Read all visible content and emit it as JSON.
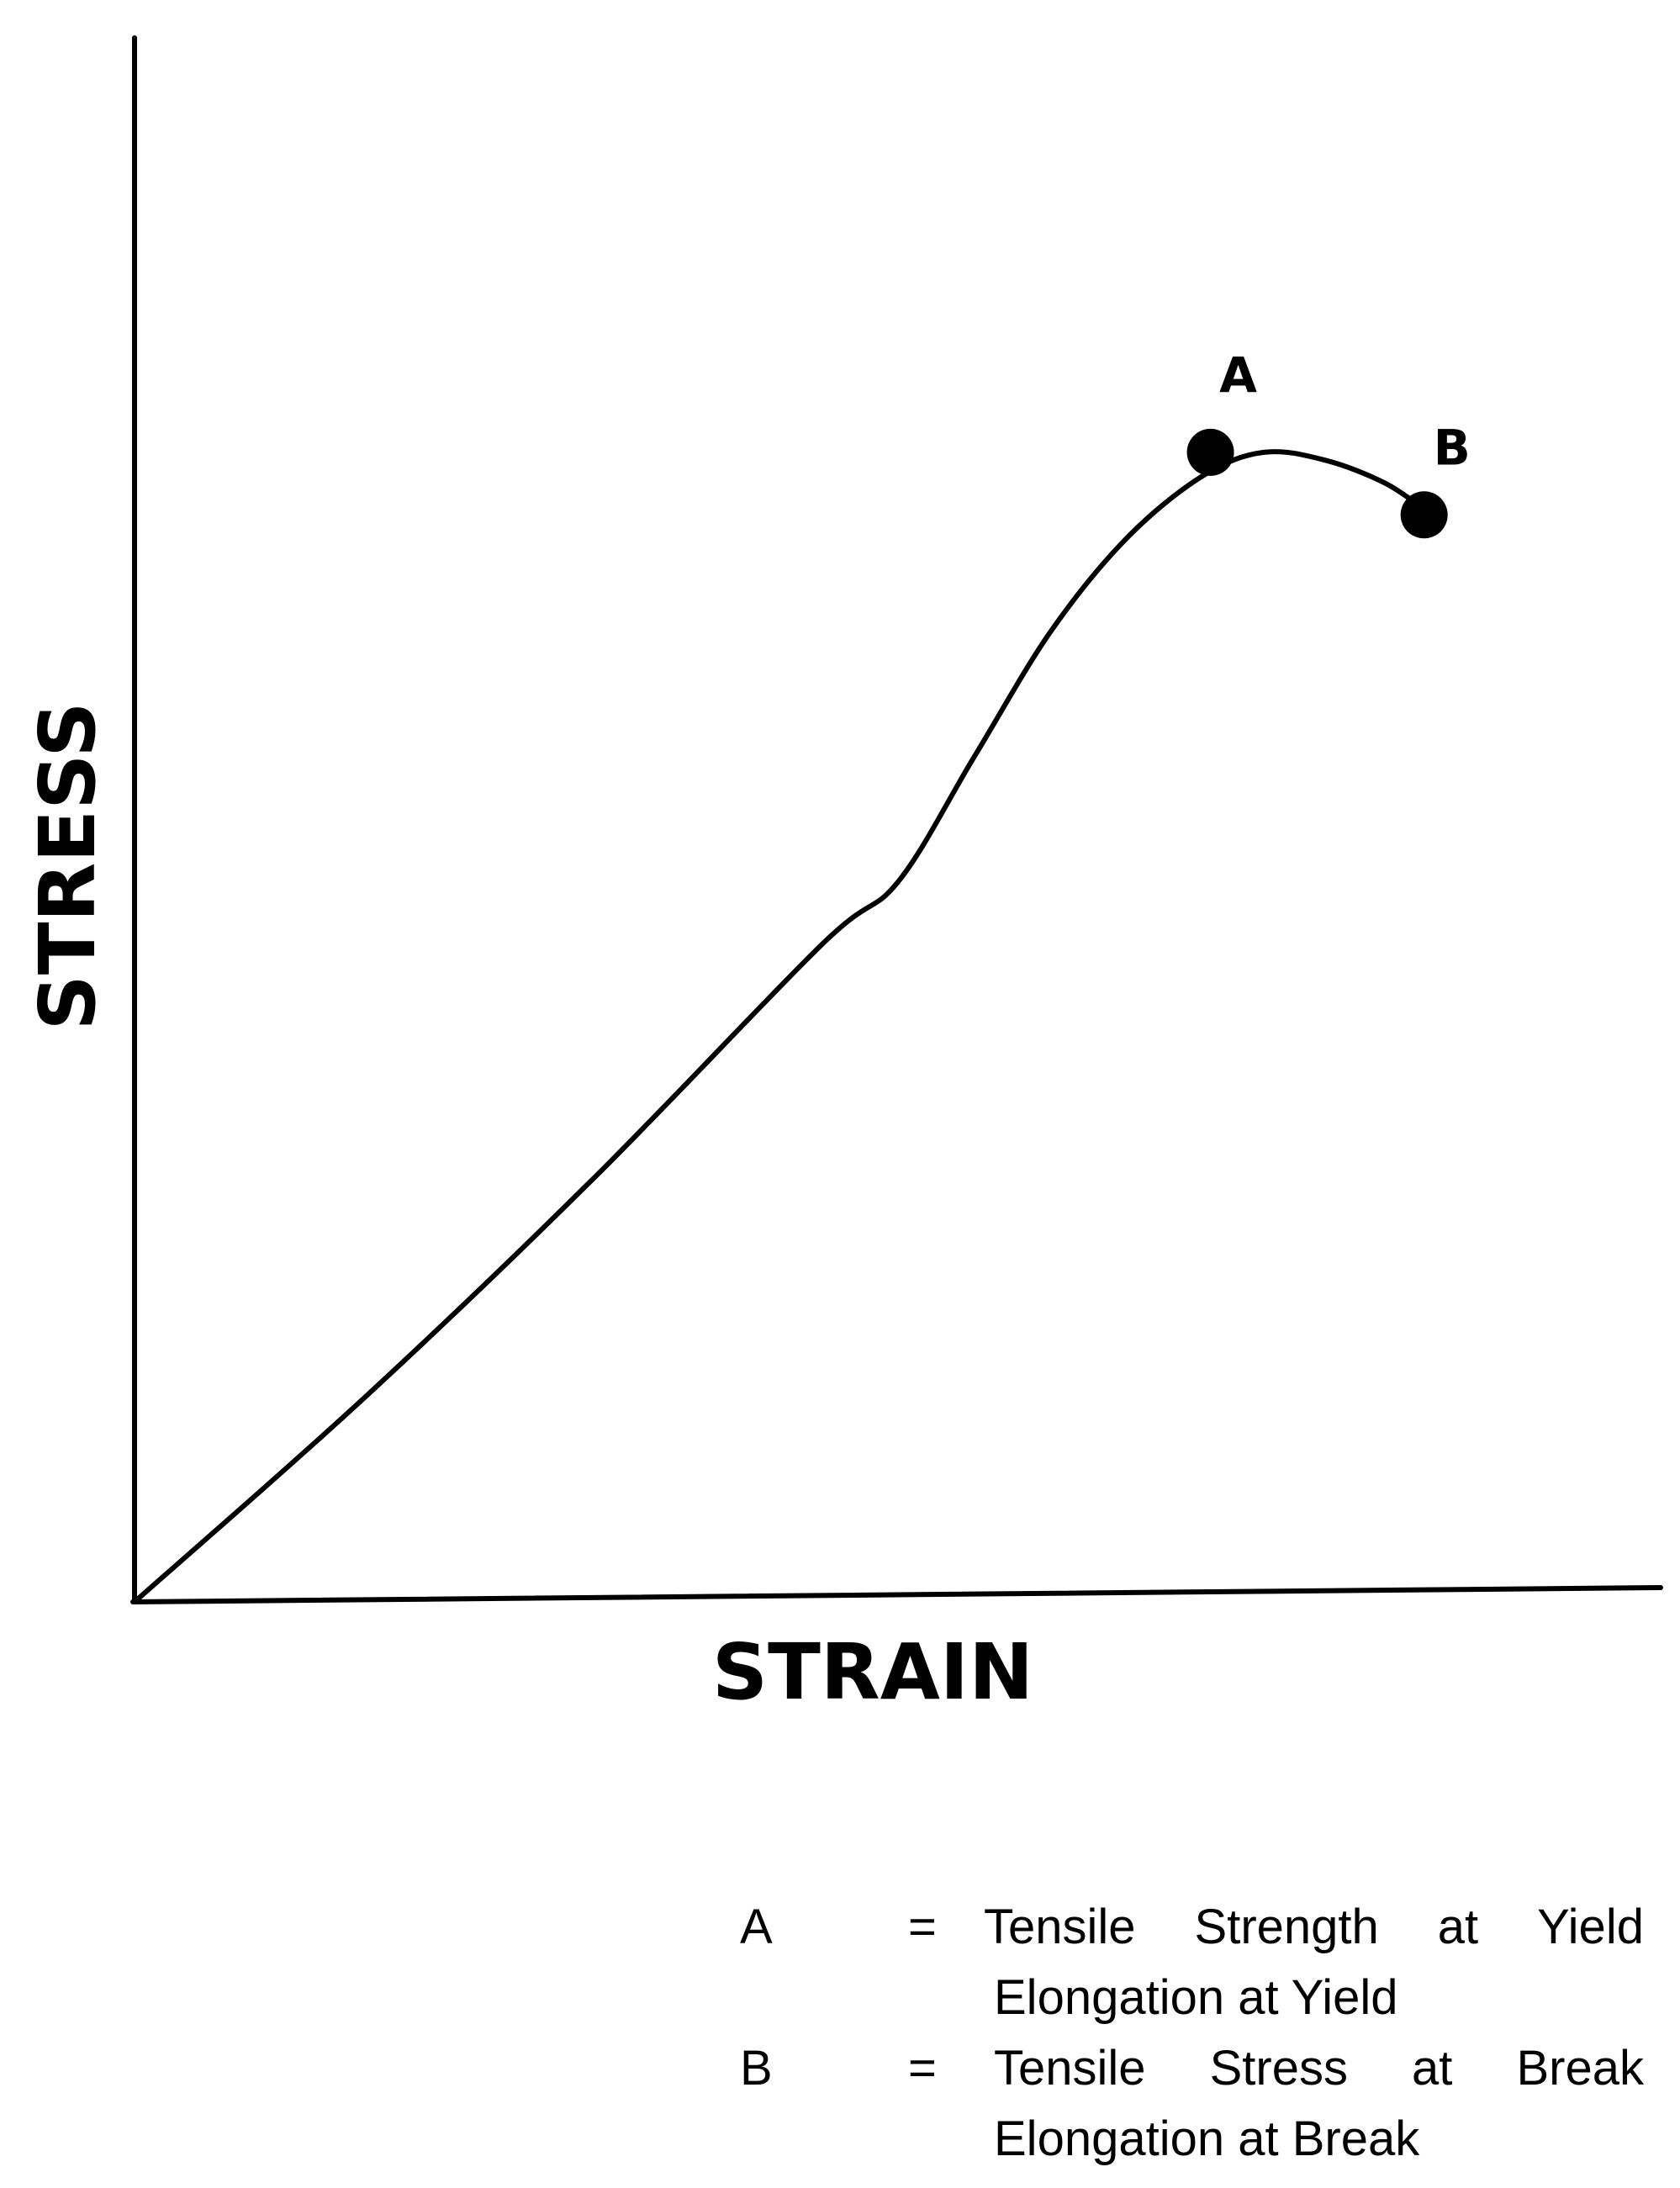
{
  "chart_data": {
    "type": "line",
    "xlabel": "STRAIN",
    "ylabel": "STRESS",
    "xlim": [
      0,
      100
    ],
    "ylim": [
      0,
      100
    ],
    "grid": false,
    "ticks": false,
    "curve": {
      "points": [
        [
          0,
          0
        ],
        [
          15,
          13
        ],
        [
          30,
          27
        ],
        [
          45,
          42
        ],
        [
          50,
          46
        ],
        [
          55,
          54
        ],
        [
          60,
          62
        ],
        [
          65,
          68
        ],
        [
          70,
          72
        ],
        [
          74,
          73.5
        ],
        [
          78,
          73
        ],
        [
          82,
          71.5
        ],
        [
          85,
          69.5
        ]
      ]
    },
    "markers": [
      {
        "label": "A",
        "x": 70.5,
        "y": 73.5
      },
      {
        "label": "B",
        "x": 84.5,
        "y": 69.5
      }
    ]
  },
  "legend": [
    {
      "key": "A",
      "eq": "=",
      "words": [
        "Tensile",
        "Strength",
        "at",
        "Yield"
      ],
      "line2": "Elongation at Yield"
    },
    {
      "key": "B",
      "eq": "=",
      "words": [
        "Tensile",
        "Stress",
        "at",
        "Break"
      ],
      "line2": "Elongation at Break"
    }
  ]
}
